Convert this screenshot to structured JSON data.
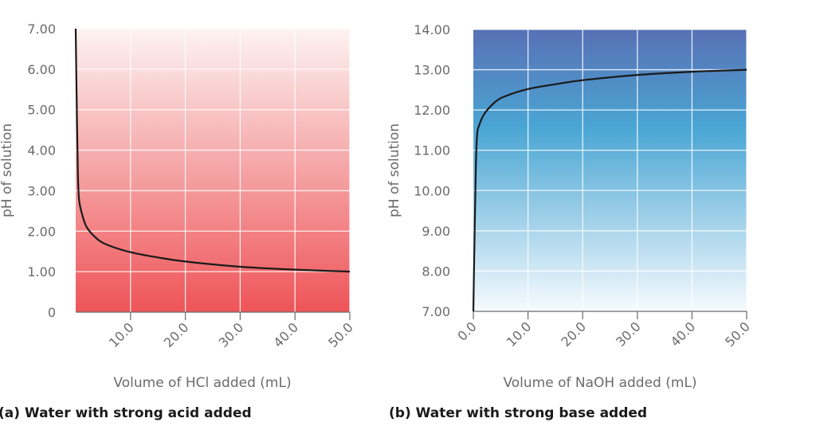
{
  "chart_data": [
    {
      "type": "line",
      "caption": "(a) Water with strong acid added",
      "xlabel": "Volume of HCl added (mL)",
      "ylabel": "pH of solution",
      "xlim": [
        0,
        50
      ],
      "ylim": [
        0,
        7
      ],
      "x_ticks": [
        "10.0",
        "20.0",
        "30.0",
        "40.0",
        "50.0"
      ],
      "y_ticks": [
        "0",
        "1.00",
        "2.00",
        "3.00",
        "4.00",
        "5.00",
        "6.00",
        "7.00"
      ],
      "grid": true,
      "background_gradient": [
        "#fdf3f2",
        "#ee5458"
      ],
      "series": [
        {
          "color": "#1a1a1a",
          "points": [
            [
              0,
              7.0
            ],
            [
              0.2,
              5.0
            ],
            [
              0.4,
              3.4
            ],
            [
              0.6,
              2.8
            ],
            [
              1,
              2.5
            ],
            [
              2,
              2.1
            ],
            [
              4,
              1.8
            ],
            [
              6,
              1.65
            ],
            [
              10,
              1.48
            ],
            [
              15,
              1.35
            ],
            [
              20,
              1.25
            ],
            [
              30,
              1.12
            ],
            [
              40,
              1.05
            ],
            [
              50,
              1.0
            ]
          ]
        }
      ]
    },
    {
      "type": "line",
      "caption": "(b) Water with strong base added",
      "xlabel": "Volume of NaOH added (mL)",
      "ylabel": "pH of solution",
      "xlim": [
        0,
        50
      ],
      "ylim": [
        7,
        14
      ],
      "x_ticks": [
        "0.0",
        "10.0",
        "20.0",
        "30.0",
        "40.0",
        "50.0"
      ],
      "y_ticks": [
        "7.00",
        "8.00",
        "9.00",
        "10.00",
        "11.00",
        "12.00",
        "13.00",
        "14.00"
      ],
      "grid": true,
      "background_gradient": [
        "#5870b5",
        "#4aa6d4",
        "#f7fbfe"
      ],
      "series": [
        {
          "color": "#1a1a1a",
          "points": [
            [
              0,
              7.0
            ],
            [
              0.3,
              9.5
            ],
            [
              0.5,
              10.8
            ],
            [
              0.7,
              11.4
            ],
            [
              1,
              11.6
            ],
            [
              2,
              11.9
            ],
            [
              4,
              12.2
            ],
            [
              6,
              12.35
            ],
            [
              10,
              12.52
            ],
            [
              15,
              12.64
            ],
            [
              20,
              12.74
            ],
            [
              30,
              12.87
            ],
            [
              40,
              12.95
            ],
            [
              50,
              13.0
            ]
          ]
        }
      ]
    }
  ]
}
